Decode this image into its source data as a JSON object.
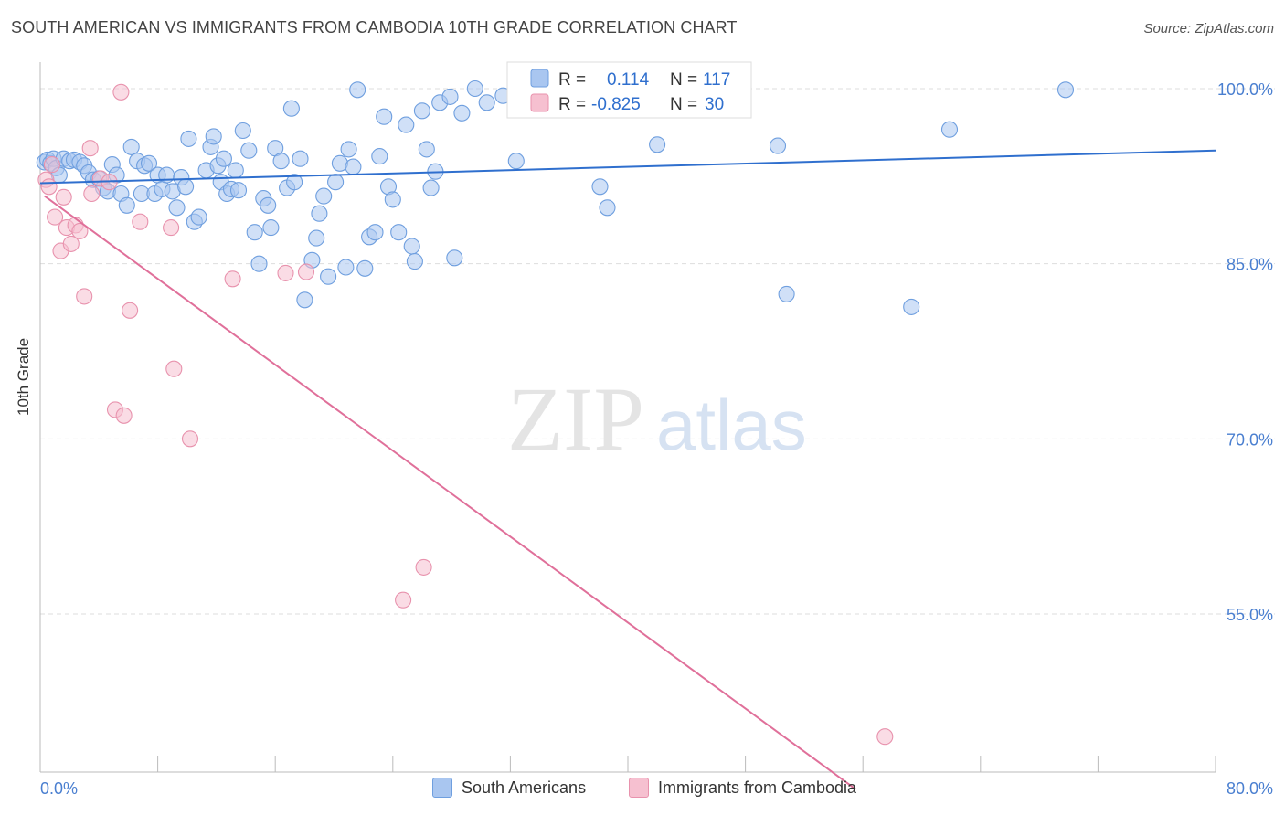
{
  "title": "SOUTH AMERICAN VS IMMIGRANTS FROM CAMBODIA 10TH GRADE CORRELATION CHART",
  "source": "Source: ZipAtlas.com",
  "watermark": {
    "zip": "ZIP",
    "atlas": "atlas"
  },
  "legend": {
    "rows": [
      {
        "r_label": "R =",
        "r_value": "0.114",
        "n_label": "N =",
        "n_value": "117"
      },
      {
        "r_label": "R =",
        "r_value": "-0.825",
        "n_label": "N =",
        "n_value": "30"
      }
    ]
  },
  "bottom_legend": [
    "South Americans",
    "Immigrants from Cambodia"
  ],
  "colors": {
    "blue_fill": "#a9c6f0",
    "blue_stroke": "#6f9fdf",
    "blue_line": "#2f6fce",
    "pink_fill": "#f6c0d0",
    "pink_stroke": "#e892ad",
    "pink_line": "#e0709a",
    "tick_text": "#4a7fd0"
  },
  "chart_data": {
    "type": "scatter",
    "title": "SOUTH AMERICAN VS IMMIGRANTS FROM CAMBODIA 10TH GRADE CORRELATION CHART",
    "xlabel": "",
    "ylabel": "10th Grade",
    "xlim": [
      0,
      80
    ],
    "ylim": [
      40,
      101.5
    ],
    "x_tick_labels": [
      "0.0%",
      "80.0%"
    ],
    "y_ticks": [
      55,
      70,
      85,
      100
    ],
    "y_tick_labels": [
      "55.0%",
      "70.0%",
      "85.0%",
      "100.0%"
    ],
    "grid": "horizontal dashed",
    "legend_position": "top-center",
    "series": [
      {
        "name": "South Americans",
        "r": 0.114,
        "n": 117,
        "trend": {
          "x": [
            0,
            80
          ],
          "y": [
            91.9,
            94.7
          ]
        },
        "points": [
          [
            0.3,
            93.7
          ],
          [
            0.5,
            93.9
          ],
          [
            0.7,
            93.6
          ],
          [
            0.9,
            94.0
          ],
          [
            1.1,
            93.2
          ],
          [
            1.3,
            92.6
          ],
          [
            1.6,
            94.0
          ],
          [
            2.0,
            93.8
          ],
          [
            2.3,
            93.9
          ],
          [
            2.7,
            93.7
          ],
          [
            3.0,
            93.4
          ],
          [
            3.3,
            92.8
          ],
          [
            3.6,
            92.2
          ],
          [
            4.0,
            92.3
          ],
          [
            4.3,
            91.5
          ],
          [
            4.6,
            91.2
          ],
          [
            4.9,
            93.5
          ],
          [
            5.2,
            92.6
          ],
          [
            5.5,
            91.0
          ],
          [
            5.9,
            90.0
          ],
          [
            6.2,
            95.0
          ],
          [
            6.6,
            93.8
          ],
          [
            6.9,
            91.0
          ],
          [
            7.1,
            93.4
          ],
          [
            7.4,
            93.6
          ],
          [
            7.8,
            91.0
          ],
          [
            8.0,
            92.6
          ],
          [
            8.3,
            91.4
          ],
          [
            8.6,
            92.6
          ],
          [
            9.0,
            91.2
          ],
          [
            9.3,
            89.8
          ],
          [
            9.6,
            92.4
          ],
          [
            9.9,
            91.6
          ],
          [
            10.1,
            95.7
          ],
          [
            10.5,
            88.6
          ],
          [
            10.8,
            89.0
          ],
          [
            11.3,
            93.0
          ],
          [
            11.6,
            95.0
          ],
          [
            11.8,
            95.9
          ],
          [
            12.1,
            93.4
          ],
          [
            12.3,
            92.0
          ],
          [
            12.5,
            94.0
          ],
          [
            12.7,
            91.0
          ],
          [
            13.0,
            91.4
          ],
          [
            13.3,
            93.0
          ],
          [
            13.5,
            91.3
          ],
          [
            13.8,
            96.4
          ],
          [
            14.2,
            94.7
          ],
          [
            14.6,
            87.7
          ],
          [
            14.9,
            85.0
          ],
          [
            15.2,
            90.6
          ],
          [
            15.5,
            90.0
          ],
          [
            15.7,
            88.1
          ],
          [
            16.0,
            94.9
          ],
          [
            16.4,
            93.8
          ],
          [
            16.8,
            91.5
          ],
          [
            17.1,
            98.3
          ],
          [
            17.3,
            92.0
          ],
          [
            17.7,
            94.0
          ],
          [
            18.0,
            81.9
          ],
          [
            18.5,
            85.3
          ],
          [
            18.8,
            87.2
          ],
          [
            19.0,
            89.3
          ],
          [
            19.3,
            90.8
          ],
          [
            19.6,
            83.9
          ],
          [
            20.1,
            92.0
          ],
          [
            20.4,
            93.6
          ],
          [
            20.8,
            84.7
          ],
          [
            21.0,
            94.8
          ],
          [
            21.3,
            93.3
          ],
          [
            21.6,
            99.9
          ],
          [
            22.1,
            84.6
          ],
          [
            22.4,
            87.3
          ],
          [
            22.8,
            87.7
          ],
          [
            23.1,
            94.2
          ],
          [
            23.4,
            97.6
          ],
          [
            23.7,
            91.6
          ],
          [
            24.0,
            90.5
          ],
          [
            24.4,
            87.7
          ],
          [
            24.9,
            96.9
          ],
          [
            25.3,
            86.5
          ],
          [
            25.5,
            85.2
          ],
          [
            26.0,
            98.1
          ],
          [
            26.3,
            94.8
          ],
          [
            26.6,
            91.5
          ],
          [
            26.9,
            92.9
          ],
          [
            27.2,
            98.8
          ],
          [
            27.9,
            99.3
          ],
          [
            28.2,
            85.5
          ],
          [
            28.7,
            97.9
          ],
          [
            29.6,
            100.0
          ],
          [
            30.4,
            98.8
          ],
          [
            31.5,
            99.4
          ],
          [
            32.4,
            93.8
          ],
          [
            34.2,
            99.5
          ],
          [
            38.1,
            91.6
          ],
          [
            38.6,
            89.8
          ],
          [
            42.0,
            95.2
          ],
          [
            50.2,
            95.1
          ],
          [
            50.8,
            82.4
          ],
          [
            59.3,
            81.3
          ],
          [
            61.9,
            96.5
          ],
          [
            69.8,
            99.9
          ]
        ]
      },
      {
        "name": "Immigrants from Cambodia",
        "r": -0.825,
        "n": 30,
        "trend": {
          "x": [
            0.3,
            55.5
          ],
          "y": [
            90.8,
            40.0
          ]
        },
        "points": [
          [
            0.4,
            92.2
          ],
          [
            0.6,
            91.6
          ],
          [
            0.8,
            93.5
          ],
          [
            1.0,
            89.0
          ],
          [
            1.4,
            86.1
          ],
          [
            1.6,
            90.7
          ],
          [
            1.8,
            88.1
          ],
          [
            2.1,
            86.7
          ],
          [
            2.4,
            88.3
          ],
          [
            2.7,
            87.8
          ],
          [
            3.0,
            82.2
          ],
          [
            3.4,
            94.9
          ],
          [
            3.5,
            91.0
          ],
          [
            4.1,
            92.3
          ],
          [
            4.7,
            92.0
          ],
          [
            5.1,
            72.5
          ],
          [
            5.5,
            99.7
          ],
          [
            5.7,
            72.0
          ],
          [
            6.1,
            81.0
          ],
          [
            6.8,
            88.6
          ],
          [
            8.9,
            88.1
          ],
          [
            9.1,
            76.0
          ],
          [
            10.2,
            70.0
          ],
          [
            13.1,
            83.7
          ],
          [
            16.7,
            84.2
          ],
          [
            18.1,
            84.3
          ],
          [
            24.7,
            56.2
          ],
          [
            26.1,
            59.0
          ],
          [
            57.5,
            44.5
          ]
        ]
      }
    ]
  }
}
